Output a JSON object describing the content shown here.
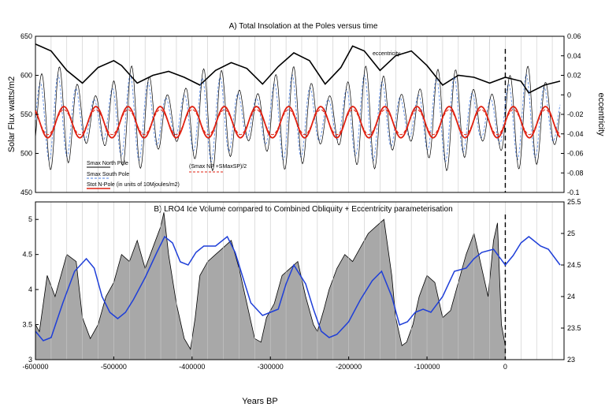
{
  "chart_data": [
    {
      "type": "line",
      "title": "A) Total Insolation at the Poles versus time",
      "ylabel_left": "Solar Flux watts/m2",
      "ylabel_right": "eccentricity",
      "ylim_left": [
        450,
        650
      ],
      "ylim_right": [
        -0.1,
        0.06
      ],
      "yticks_left": [
        "450",
        "500",
        "550",
        "600",
        "650"
      ],
      "yticks_right": [
        "-0.1",
        "-0.08",
        "-0.06",
        "-0.04",
        "-0.02",
        "0",
        "0.02",
        "0.04",
        "0.06"
      ],
      "xlim": [
        -600000,
        75000
      ],
      "annotation": "eccentricity",
      "legend": [
        {
          "label": "Smax North Pole",
          "color": "#000000",
          "style": "solid"
        },
        {
          "label": "Smax South Pole",
          "color": "#4a7ee0",
          "style": "dashed"
        },
        {
          "label": "Stot N-Pole (in units of 10Mjoules/m2)",
          "color": "#e02010",
          "style": "solid"
        },
        {
          "label": "(Smax NP +SMaxSP)/2",
          "color": "#e02010",
          "style": "dashed"
        }
      ],
      "series": [
        {
          "name": "eccentricity",
          "axis": "right",
          "x": [
            -600000,
            -580000,
            -560000,
            -540000,
            -520000,
            -500000,
            -490000,
            -470000,
            -450000,
            -430000,
            -410000,
            -390000,
            -370000,
            -350000,
            -330000,
            -310000,
            -290000,
            -270000,
            -250000,
            -230000,
            -210000,
            -195000,
            -180000,
            -160000,
            -140000,
            -120000,
            -100000,
            -80000,
            -60000,
            -40000,
            -20000,
            0,
            20000,
            30000,
            50000,
            70000
          ],
          "y": [
            0.052,
            0.045,
            0.025,
            0.012,
            0.028,
            0.035,
            0.03,
            0.012,
            0.02,
            0.024,
            0.018,
            0.01,
            0.025,
            0.033,
            0.027,
            0.011,
            0.029,
            0.043,
            0.035,
            0.011,
            0.028,
            0.05,
            0.045,
            0.025,
            0.04,
            0.045,
            0.03,
            0.01,
            0.02,
            0.018,
            0.012,
            0.018,
            0.014,
            0.002,
            0.01,
            0.014
          ]
        },
        {
          "name": "Smax North Pole",
          "axis": "left",
          "mean": 545,
          "amp": 60,
          "period": 23000,
          "env": 30
        },
        {
          "name": "Smax South Pole",
          "axis": "left",
          "mean": 545,
          "amp": 50,
          "period": 23000,
          "phase": 0.5,
          "env": 25
        },
        {
          "name": "Stot N-Pole (in units of 10Mjoules/m2)",
          "axis": "left",
          "mean": 540,
          "amp": 20,
          "period": 41000
        },
        {
          "name": "(Smax NP +SMaxSP)/2",
          "axis": "left",
          "mean": 540,
          "amp": 16,
          "period": 41000
        }
      ]
    },
    {
      "type": "area",
      "title": "B) LRO4 Ice Volume compared to Combined Obliquity + Eccentricity parameterisation",
      "xlabel": "Years BP",
      "ylim_left": [
        3,
        5.25
      ],
      "ylim_right": [
        23,
        25.5
      ],
      "yticks_left": [
        "3",
        "3.5",
        "4",
        "4.5",
        "5"
      ],
      "yticks_right": [
        "23",
        "23.5",
        "24",
        "24.5",
        "25",
        "25.5"
      ],
      "xlim": [
        -600000,
        75000
      ],
      "xticks": [
        "-600000",
        "-500000",
        "-400000",
        "-300000",
        "-200000",
        "-100000",
        "0"
      ],
      "series": [
        {
          "name": "LRO4 Ice Volume",
          "axis": "left",
          "x": [
            -600000,
            -595000,
            -585000,
            -575000,
            -560000,
            -548000,
            -540000,
            -530000,
            -520000,
            -510000,
            -500000,
            -490000,
            -480000,
            -470000,
            -460000,
            -450000,
            -440000,
            -436000,
            -430000,
            -420000,
            -410000,
            -402000,
            -396000,
            -390000,
            -380000,
            -370000,
            -360000,
            -350000,
            -340000,
            -330000,
            -320000,
            -312000,
            -305000,
            -295000,
            -285000,
            -275000,
            -265000,
            -255000,
            -245000,
            -240000,
            -232000,
            -225000,
            -215000,
            -205000,
            -195000,
            -185000,
            -175000,
            -165000,
            -155000,
            -145000,
            -140000,
            -132000,
            -126000,
            -118000,
            -110000,
            -100000,
            -90000,
            -80000,
            -70000,
            -60000,
            -50000,
            -40000,
            -30000,
            -22000,
            -15000,
            -10000,
            -5000,
            0
          ],
          "y": [
            3.5,
            3.4,
            4.2,
            3.9,
            4.5,
            4.4,
            3.6,
            3.3,
            3.5,
            3.9,
            4.1,
            4.5,
            4.4,
            4.7,
            4.3,
            4.6,
            4.9,
            5.1,
            4.5,
            3.8,
            3.3,
            3.15,
            3.6,
            4.2,
            4.4,
            4.5,
            4.6,
            4.7,
            4.3,
            3.8,
            3.3,
            3.25,
            3.6,
            3.8,
            4.2,
            4.3,
            4.4,
            3.9,
            3.5,
            3.4,
            3.7,
            4.0,
            4.3,
            4.5,
            4.4,
            4.6,
            4.8,
            4.9,
            5.0,
            4.2,
            3.6,
            3.2,
            3.25,
            3.5,
            3.9,
            4.2,
            4.1,
            3.6,
            3.7,
            4.1,
            4.5,
            4.8,
            4.3,
            3.9,
            4.7,
            4.95,
            3.5,
            3.2
          ]
        },
        {
          "name": "Combined Obliquity + Eccentricity parameterisation",
          "axis": "right",
          "x": [
            -600000,
            -590000,
            -580000,
            -565000,
            -550000,
            -535000,
            -525000,
            -515000,
            -505000,
            -495000,
            -485000,
            -475000,
            -460000,
            -445000,
            -435000,
            -425000,
            -415000,
            -405000,
            -395000,
            -385000,
            -370000,
            -355000,
            -345000,
            -335000,
            -325000,
            -310000,
            -300000,
            -290000,
            -280000,
            -270000,
            -255000,
            -245000,
            -235000,
            -225000,
            -215000,
            -200000,
            -185000,
            -170000,
            -158000,
            -145000,
            -135000,
            -125000,
            -115000,
            -105000,
            -95000,
            -80000,
            -65000,
            -50000,
            -40000,
            -30000,
            -15000,
            0,
            10000,
            20000,
            30000,
            45000,
            55000,
            70000
          ],
          "y": [
            23.45,
            23.3,
            23.35,
            23.9,
            24.4,
            24.6,
            24.45,
            24.0,
            23.75,
            23.65,
            23.75,
            23.95,
            24.3,
            24.7,
            24.95,
            24.85,
            24.55,
            24.5,
            24.7,
            24.8,
            24.8,
            24.95,
            24.7,
            24.3,
            23.9,
            23.7,
            23.75,
            23.8,
            24.2,
            24.5,
            24.2,
            23.8,
            23.45,
            23.35,
            23.4,
            23.6,
            23.95,
            24.25,
            24.4,
            24.0,
            23.55,
            23.6,
            23.75,
            23.8,
            23.75,
            24.0,
            24.4,
            24.45,
            24.6,
            24.7,
            24.75,
            24.5,
            24.65,
            24.85,
            24.95,
            24.8,
            24.75,
            24.5
          ]
        }
      ]
    }
  ]
}
